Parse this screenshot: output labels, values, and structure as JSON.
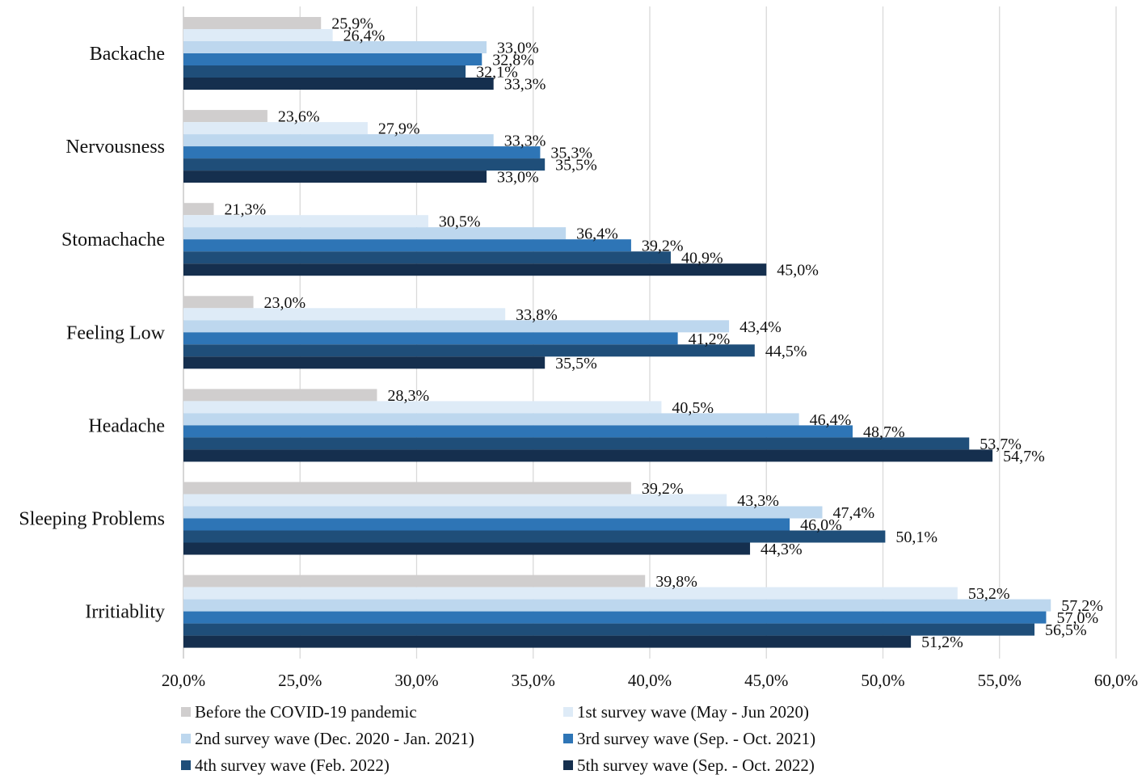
{
  "chart_data": {
    "type": "bar",
    "orientation": "horizontal",
    "title": "",
    "xlabel": "",
    "ylabel": "",
    "xlim": [
      20,
      60
    ],
    "grid": true,
    "legend_position": "bottom",
    "categories": [
      "Backache",
      "Nervousness",
      "Stomachache",
      "Feeling Low",
      "Headache",
      "Sleeping Problems",
      "Irritiablity"
    ],
    "x_ticks": [
      "20,0%",
      "25,0%",
      "30,0%",
      "35,0%",
      "40,0%",
      "45,0%",
      "50,0%",
      "55,0%",
      "60,0%"
    ],
    "series": [
      {
        "name": "Before the COVID-19 pandemic",
        "color": "#d0cece",
        "values": [
          25.9,
          23.6,
          21.3,
          23.0,
          28.3,
          39.2,
          39.8
        ],
        "labels": [
          "25,9%",
          "23,6%",
          "21,3%",
          "23,0%",
          "28,3%",
          "39,2%",
          "39,8%"
        ]
      },
      {
        "name": "1st survey wave (May - Jun 2020)",
        "color": "#deebf7",
        "values": [
          26.4,
          27.9,
          30.5,
          33.8,
          40.5,
          43.3,
          53.2
        ],
        "labels": [
          "26,4%",
          "27,9%",
          "30,5%",
          "33,8%",
          "40,5%",
          "43,3%",
          "53,2%"
        ]
      },
      {
        "name": "2nd survey wave (Dec. 2020 - Jan. 2021)",
        "color": "#bdd7ee",
        "values": [
          33.0,
          33.3,
          36.4,
          43.4,
          46.4,
          47.4,
          57.2
        ],
        "labels": [
          "33,0%",
          "33,3%",
          "36,4%",
          "43,4%",
          "46,4%",
          "47,4%",
          "57,2%"
        ]
      },
      {
        "name": "3rd survey wave (Sep. - Oct. 2021)",
        "color": "#2e75b6",
        "values": [
          32.8,
          35.3,
          39.2,
          41.2,
          48.7,
          46.0,
          57.0
        ],
        "labels": [
          "32,8%",
          "35,3%",
          "39,2%",
          "41,2%",
          "48,7%",
          "46,0%",
          "57,0%"
        ]
      },
      {
        "name": "4th survey wave (Feb. 2022)",
        "color": "#1f4e79",
        "values": [
          32.1,
          35.5,
          40.9,
          44.5,
          53.7,
          50.1,
          56.5
        ],
        "labels": [
          "32,1%",
          "35,5%",
          "40,9%",
          "44,5%",
          "53,7%",
          "50,1%",
          "56,5%"
        ]
      },
      {
        "name": "5th survey wave (Sep. - Oct. 2022)",
        "color": "#152f4e",
        "values": [
          33.3,
          33.0,
          45.0,
          35.5,
          54.7,
          44.3,
          51.2
        ],
        "labels": [
          "33,3%",
          "33,0%",
          "45,0%",
          "35,5%",
          "54,7%",
          "44,3%",
          "51,2%"
        ]
      }
    ]
  }
}
